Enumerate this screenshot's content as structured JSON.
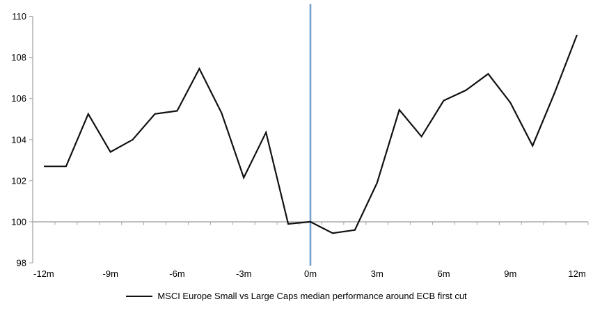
{
  "chart_data": {
    "type": "line",
    "title": "",
    "xlabel": "",
    "ylabel": "",
    "x_months": [
      -12,
      -11,
      -10,
      -9,
      -8,
      -7,
      -6,
      -5,
      -4,
      -3,
      -2,
      -1,
      0,
      1,
      2,
      3,
      4,
      5,
      6,
      7,
      8,
      9,
      10,
      11,
      12
    ],
    "series": [
      {
        "name": "MSCI Europe Small vs Large Caps median performance around ECB first cut",
        "values": [
          102.7,
          102.7,
          105.25,
          103.4,
          104.0,
          105.25,
          105.4,
          107.45,
          105.3,
          102.15,
          104.35,
          99.9,
          100.0,
          99.45,
          99.6,
          101.9,
          105.45,
          104.15,
          105.9,
          106.4,
          107.2,
          105.8,
          103.7,
          106.3,
          109.1
        ]
      }
    ],
    "ylim": [
      98,
      110
    ],
    "y_ticks": [
      98,
      100,
      102,
      104,
      106,
      108,
      110
    ],
    "x_tick_months": [
      -12,
      -9,
      -6,
      -3,
      0,
      3,
      6,
      9,
      12
    ],
    "x_tick_labels": [
      "-12m",
      "-9m",
      "-6m",
      "-3m",
      "0m",
      "3m",
      "6m",
      "9m",
      "12m"
    ],
    "baseline_value": 100,
    "event_line_at_month": 0,
    "grid": "off",
    "legend_position": "bottom-center",
    "colors": {
      "series_line": "#111111",
      "axis_and_baseline": "#A6A6A6",
      "event_line": "#74A2CC",
      "tick_text": "#000000",
      "background": "#FFFFFF"
    }
  },
  "legend": {
    "label": "MSCI Europe Small vs Large Caps median performance around ECB first cut"
  }
}
